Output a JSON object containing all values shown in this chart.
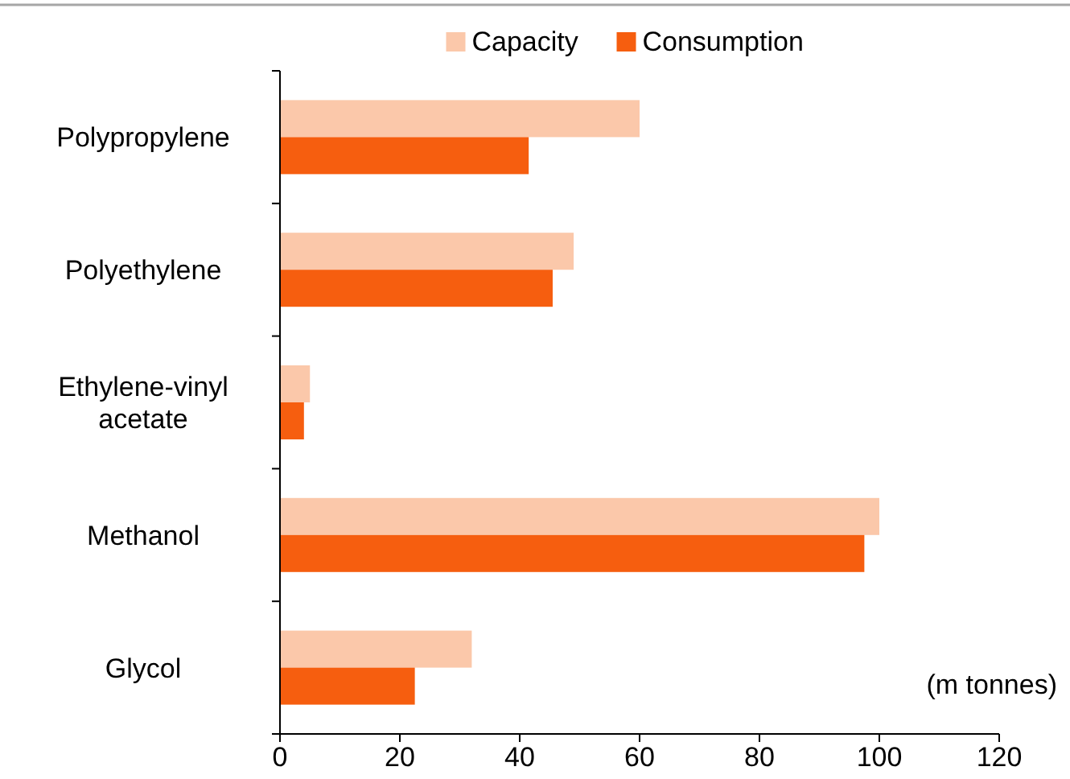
{
  "chart_data": {
    "type": "bar",
    "orientation": "horizontal",
    "categories": [
      "Polypropylene",
      "Polyethylene",
      "Ethylene-vinyl acetate",
      "Methanol",
      "Glycol"
    ],
    "series": [
      {
        "name": "Capacity",
        "color": "#fbc8aa",
        "values": [
          60,
          49,
          5,
          100,
          32
        ]
      },
      {
        "name": "Consumption",
        "color": "#f65e0f",
        "values": [
          41.5,
          45.5,
          4,
          97.5,
          22.5
        ]
      }
    ],
    "xlim": [
      0,
      120
    ],
    "xticks": [
      0,
      20,
      40,
      60,
      80,
      100,
      120
    ],
    "grid": false,
    "legend": "top",
    "annotations": [
      "(m tonnes)"
    ]
  }
}
